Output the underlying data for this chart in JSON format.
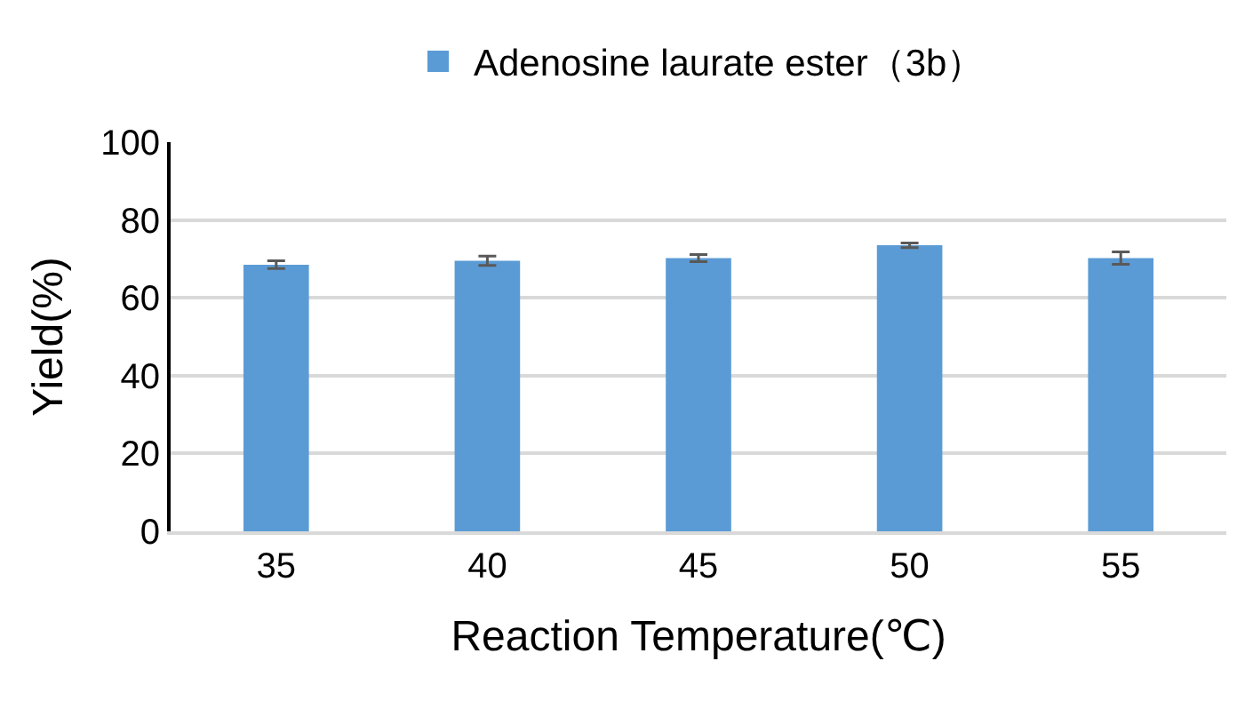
{
  "chart_data": {
    "type": "bar",
    "xlabel": "Reaction Temperature(℃)",
    "ylabel": "Yield(%)",
    "categories": [
      "35",
      "40",
      "45",
      "50",
      "55"
    ],
    "series": [
      {
        "name": "Adenosine laurate ester（3b）",
        "color": "#5b9bd5",
        "values": [
          68.5,
          69.5,
          70.2,
          73.5,
          70.2
        ],
        "errors": [
          1,
          1.2,
          0.9,
          0.6,
          1.6
        ]
      }
    ],
    "ylim": [
      0,
      100
    ],
    "yticks": [
      0,
      20,
      40,
      60,
      80,
      100
    ],
    "grid": "y",
    "legend": "top"
  }
}
